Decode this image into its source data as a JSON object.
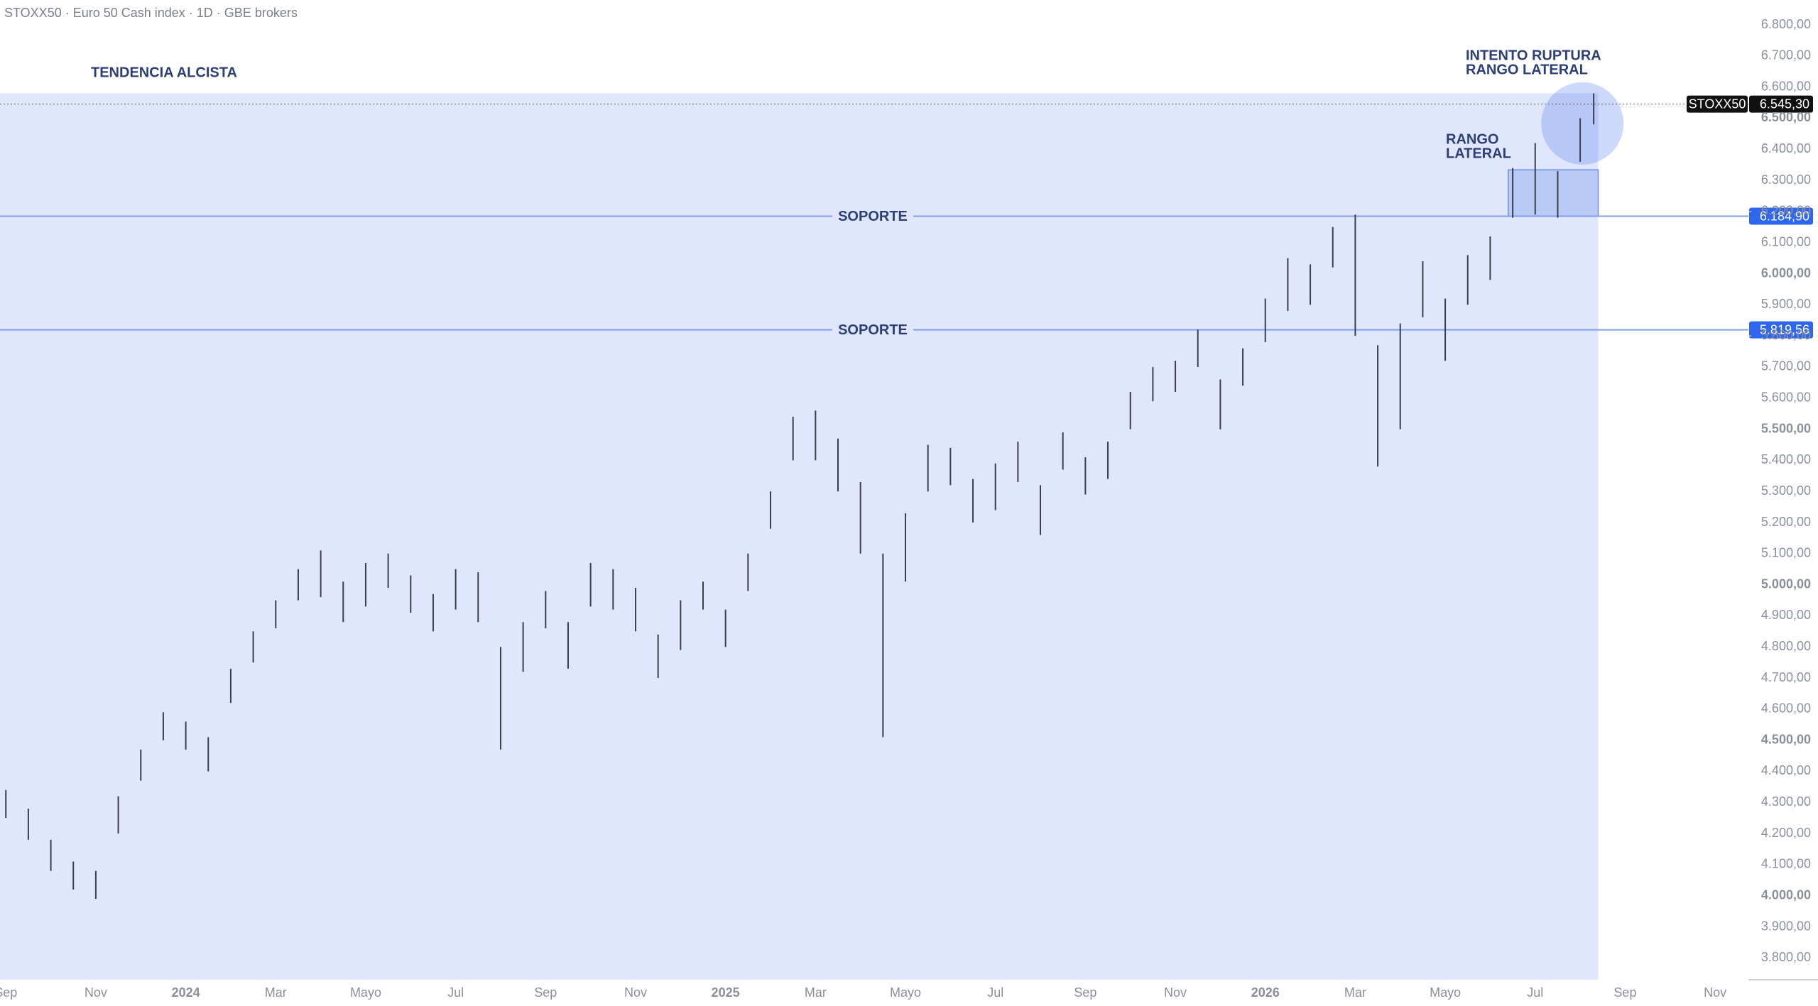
{
  "chart_data": {
    "type": "ohlc",
    "title": "STOXX50 · Euro 50 Cash index · 1D · GBE brokers",
    "x": [
      0,
      0.5,
      1,
      1.5,
      2,
      2.5,
      3,
      3.5,
      4,
      4.5,
      5,
      5.5,
      6,
      6.5,
      7,
      7.5,
      8,
      8.5,
      9,
      9.5,
      10,
      10.5,
      11,
      11.5,
      12,
      12.5,
      13,
      13.5,
      14,
      14.5,
      15,
      15.5,
      16,
      16.5,
      17,
      17.5,
      18,
      18.5,
      19,
      19.5,
      20,
      20.5,
      21,
      21.5,
      22,
      22.5,
      23,
      23.5,
      24,
      24.5,
      25,
      25.5,
      26,
      26.5,
      27,
      27.5,
      28,
      28.5,
      29,
      29.5,
      30,
      30.5,
      31,
      31.5,
      32,
      32.5,
      33,
      33.5,
      34,
      34.5,
      35,
      35.3
    ],
    "high": [
      4340,
      4280,
      4180,
      4110,
      4080,
      4320,
      4470,
      4590,
      4560,
      4510,
      4730,
      4850,
      4950,
      5050,
      5110,
      5010,
      5070,
      5100,
      5030,
      4970,
      5050,
      5040,
      4800,
      4880,
      4980,
      4880,
      5070,
      5050,
      4990,
      4840,
      4950,
      5010,
      4920,
      5100,
      5300,
      5540,
      5560,
      5470,
      5330,
      5100,
      5230,
      5450,
      5440,
      5340,
      5390,
      5460,
      5320,
      5490,
      5410,
      5460,
      5620,
      5700,
      5720,
      5820,
      5660,
      5760,
      5920,
      6050,
      6030,
      6150,
      6190,
      5770,
      5840,
      6040,
      5920,
      6060,
      6120,
      6340,
      6420,
      6330,
      6500,
      6580
    ],
    "low": [
      4250,
      4180,
      4080,
      4020,
      3990,
      4200,
      4370,
      4500,
      4470,
      4400,
      4620,
      4750,
      4860,
      4950,
      4960,
      4880,
      4930,
      4990,
      4910,
      4850,
      4920,
      4880,
      4470,
      4720,
      4860,
      4730,
      4930,
      4920,
      4850,
      4700,
      4790,
      4920,
      4800,
      4980,
      5180,
      5400,
      5400,
      5300,
      5100,
      4510,
      5010,
      5300,
      5320,
      5200,
      5240,
      5330,
      5160,
      5370,
      5290,
      5340,
      5500,
      5590,
      5620,
      5700,
      5500,
      5640,
      5780,
      5880,
      5900,
      6020,
      5800,
      5380,
      5500,
      5860,
      5720,
      5900,
      5980,
      6180,
      6190,
      6180,
      6360,
      6480
    ],
    "color": "#3b3f4a",
    "xlim": [
      -0.13,
      38.74
    ],
    "ylim": [
      3730,
      6880
    ],
    "xticks": [
      {
        "value": 0,
        "label": "Sep"
      },
      {
        "value": 2,
        "label": "Nov"
      },
      {
        "value": 4,
        "label": "2024"
      },
      {
        "value": 6,
        "label": "Mar"
      },
      {
        "value": 8,
        "label": "Mayo"
      },
      {
        "value": 10,
        "label": "Jul"
      },
      {
        "value": 12,
        "label": "Sep"
      },
      {
        "value": 14,
        "label": "Nov"
      },
      {
        "value": 16,
        "label": "2025"
      },
      {
        "value": 18,
        "label": "Mar"
      },
      {
        "value": 20,
        "label": "Mayo"
      },
      {
        "value": 22,
        "label": "Jul"
      },
      {
        "value": 24,
        "label": "Sep"
      },
      {
        "value": 26,
        "label": "Nov"
      },
      {
        "value": 28,
        "label": "2026"
      },
      {
        "value": 30,
        "label": "Mar"
      },
      {
        "value": 32,
        "label": "Mayo"
      },
      {
        "value": 34,
        "label": "Jul"
      },
      {
        "value": 36,
        "label": "Sep"
      },
      {
        "value": 38,
        "label": "Nov"
      }
    ],
    "yticks": [
      {
        "value": 3800,
        "label": "3.800,00"
      },
      {
        "value": 3900,
        "label": "3.900,00"
      },
      {
        "value": 4000,
        "label": "4.000,00"
      },
      {
        "value": 4100,
        "label": "4.100,00"
      },
      {
        "value": 4200,
        "label": "4.200,00"
      },
      {
        "value": 4300,
        "label": "4.300,00"
      },
      {
        "value": 4400,
        "label": "4.400,00"
      },
      {
        "value": 4500,
        "label": "4.500,00"
      },
      {
        "value": 4600,
        "label": "4.600,00"
      },
      {
        "value": 4700,
        "label": "4.700,00"
      },
      {
        "value": 4800,
        "label": "4.800,00"
      },
      {
        "value": 4900,
        "label": "4.900,00"
      },
      {
        "value": 5000,
        "label": "5.000,00"
      },
      {
        "value": 5100,
        "label": "5.100,00"
      },
      {
        "value": 5200,
        "label": "5.200,00"
      },
      {
        "value": 5300,
        "label": "5.300,00"
      },
      {
        "value": 5400,
        "label": "5.400,00"
      },
      {
        "value": 5500,
        "label": "5.500,00"
      },
      {
        "value": 5600,
        "label": "5.600,00"
      },
      {
        "value": 5700,
        "label": "5.700,00"
      },
      {
        "value": 5800,
        "label": "5.800,00"
      },
      {
        "value": 5900,
        "label": "5.900,00"
      },
      {
        "value": 6000,
        "label": "6.000,00"
      },
      {
        "value": 6100,
        "label": "6.100,00"
      },
      {
        "value": 6200,
        "label": "6.200,00"
      },
      {
        "value": 6300,
        "label": "6.300,00"
      },
      {
        "value": 6400,
        "label": "6.400,00"
      },
      {
        "value": 6500,
        "label": "6.500,00"
      },
      {
        "value": 6600,
        "label": "6.600,00"
      },
      {
        "value": 6700,
        "label": "6.700,00"
      },
      {
        "value": 6800,
        "label": "6.800,00"
      }
    ],
    "zone": {
      "label": "TENDENCIA ALCISTA",
      "top": 6580,
      "x_end": 35.4
    },
    "range_box": {
      "lines": [
        "RANGO",
        "LATERAL"
      ],
      "x": [
        33.4,
        35.4
      ],
      "y": [
        6184.9,
        6334
      ]
    },
    "breakout": {
      "lines": [
        "INTENTO RUPTURA",
        "RANGO LATERAL"
      ],
      "x": 35.05,
      "y": 6483
    },
    "levels": [
      {
        "label": "SOPORTE",
        "value": 6184.9,
        "value_label": "6.184,90"
      },
      {
        "label": "SOPORTE",
        "value": 5819.56,
        "value_label": "5.819,56"
      }
    ],
    "last": {
      "name": "STOXX50",
      "value": 6545.3,
      "value_label": "6.545,30"
    }
  }
}
